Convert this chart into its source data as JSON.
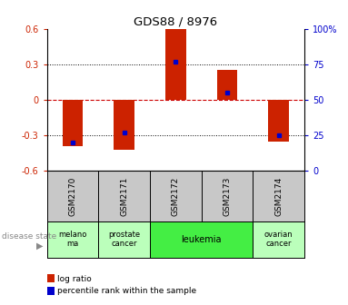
{
  "title": "GDS88 / 8976",
  "samples": [
    "GSM2170",
    "GSM2171",
    "GSM2172",
    "GSM2173",
    "GSM2174"
  ],
  "log_ratios": [
    -0.39,
    -0.42,
    0.61,
    0.25,
    -0.35
  ],
  "percentile_ranks": [
    20,
    27,
    77,
    55,
    25
  ],
  "ylim": [
    -0.6,
    0.6
  ],
  "yticks_left": [
    -0.6,
    -0.3,
    0.0,
    0.3,
    0.6
  ],
  "yticks_right": [
    0,
    25,
    50,
    75,
    100
  ],
  "bar_color": "#cc2200",
  "dot_color": "#0000cc",
  "zero_line_color": "#cc0000",
  "grid_color": "#000000",
  "bg_color": "#ffffff",
  "left_tick_color": "#cc2200",
  "right_tick_color": "#0000cc",
  "sample_bg": "#c8c8c8",
  "melanoma_color": "#bbffbb",
  "leukemia_color": "#44ee44",
  "other_disease_color": "#bbffbb",
  "legend_log_ratio": "log ratio",
  "legend_percentile": "percentile rank within the sample",
  "disease_groups": [
    {
      "label": "melano\nma",
      "start": 0,
      "end": 0,
      "color": "#bbffbb"
    },
    {
      "label": "prostate\ncancer",
      "start": 1,
      "end": 1,
      "color": "#bbffbb"
    },
    {
      "label": "leukemia",
      "start": 2,
      "end": 3,
      "color": "#44ee44"
    },
    {
      "label": "ovarian\ncancer",
      "start": 4,
      "end": 4,
      "color": "#bbffbb"
    }
  ]
}
